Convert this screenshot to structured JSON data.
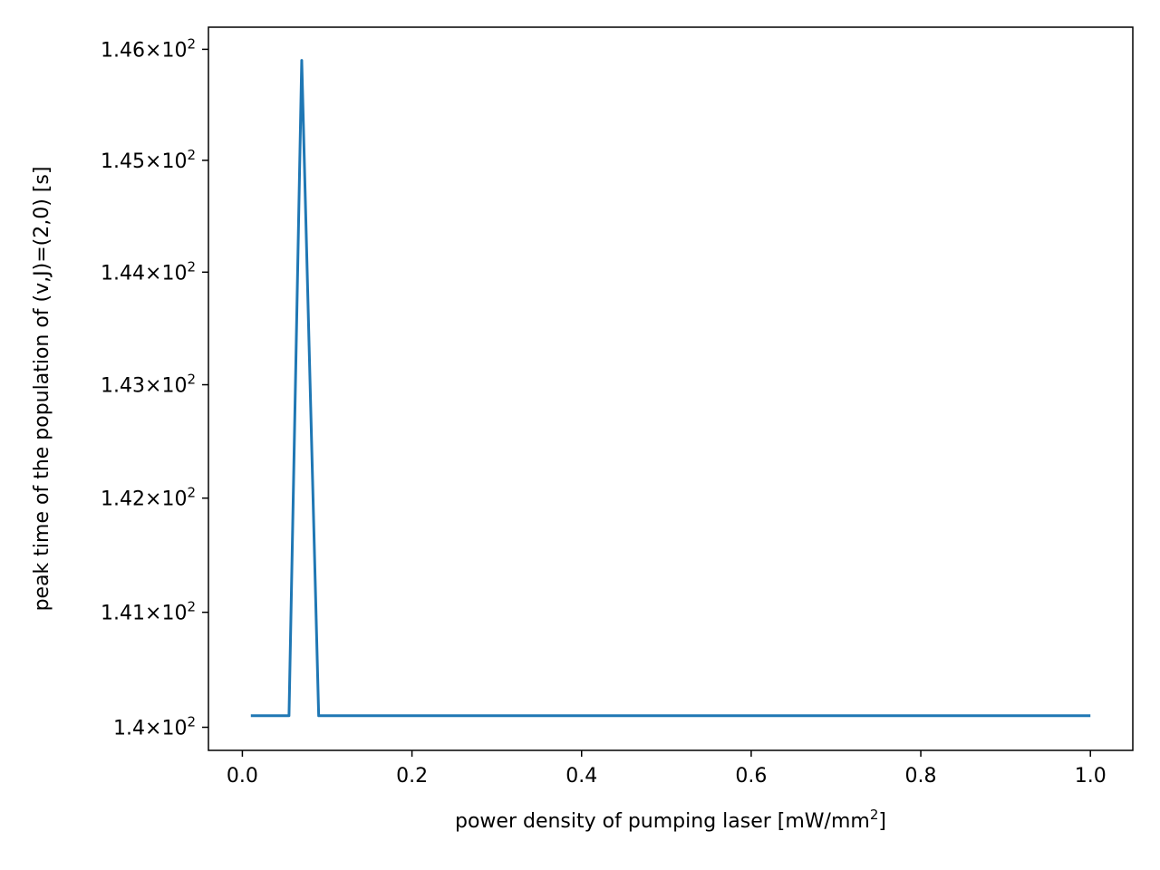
{
  "chart_data": {
    "type": "line",
    "xlabel": "power density of pumping laser [mW/mm",
    "xlabel_sup": "2",
    "xlabel_tail": "]",
    "ylabel": "peak time of the population of (v,J)=(2,0) [s]",
    "y_scale": "log",
    "xlim": [
      -0.04,
      1.05
    ],
    "ylim": [
      139.8,
      146.2
    ],
    "grid": false,
    "legend": "none",
    "x_ticks": [
      {
        "value": 0.0,
        "label": "0.0"
      },
      {
        "value": 0.2,
        "label": "0.2"
      },
      {
        "value": 0.4,
        "label": "0.4"
      },
      {
        "value": 0.6,
        "label": "0.6"
      },
      {
        "value": 0.8,
        "label": "0.8"
      },
      {
        "value": 1.0,
        "label": "1.0"
      }
    ],
    "y_ticks": [
      {
        "value": 140,
        "mantissa": "1.4",
        "times": "×",
        "base": "10",
        "exp": "2"
      },
      {
        "value": 141,
        "mantissa": "1.41",
        "times": "×",
        "base": "10",
        "exp": "2"
      },
      {
        "value": 142,
        "mantissa": "1.42",
        "times": "×",
        "base": "10",
        "exp": "2"
      },
      {
        "value": 143,
        "mantissa": "1.43",
        "times": "×",
        "base": "10",
        "exp": "2"
      },
      {
        "value": 144,
        "mantissa": "1.44",
        "times": "×",
        "base": "10",
        "exp": "2"
      },
      {
        "value": 145,
        "mantissa": "1.45",
        "times": "×",
        "base": "10",
        "exp": "2"
      },
      {
        "value": 146,
        "mantissa": "1.46",
        "times": "×",
        "base": "10",
        "exp": "2"
      }
    ],
    "series": [
      {
        "color": "#1f77b4",
        "x": [
          0.01,
          0.055,
          0.07,
          0.09,
          1.0
        ],
        "y": [
          140.1,
          140.1,
          145.9,
          140.1,
          140.1
        ]
      }
    ]
  }
}
